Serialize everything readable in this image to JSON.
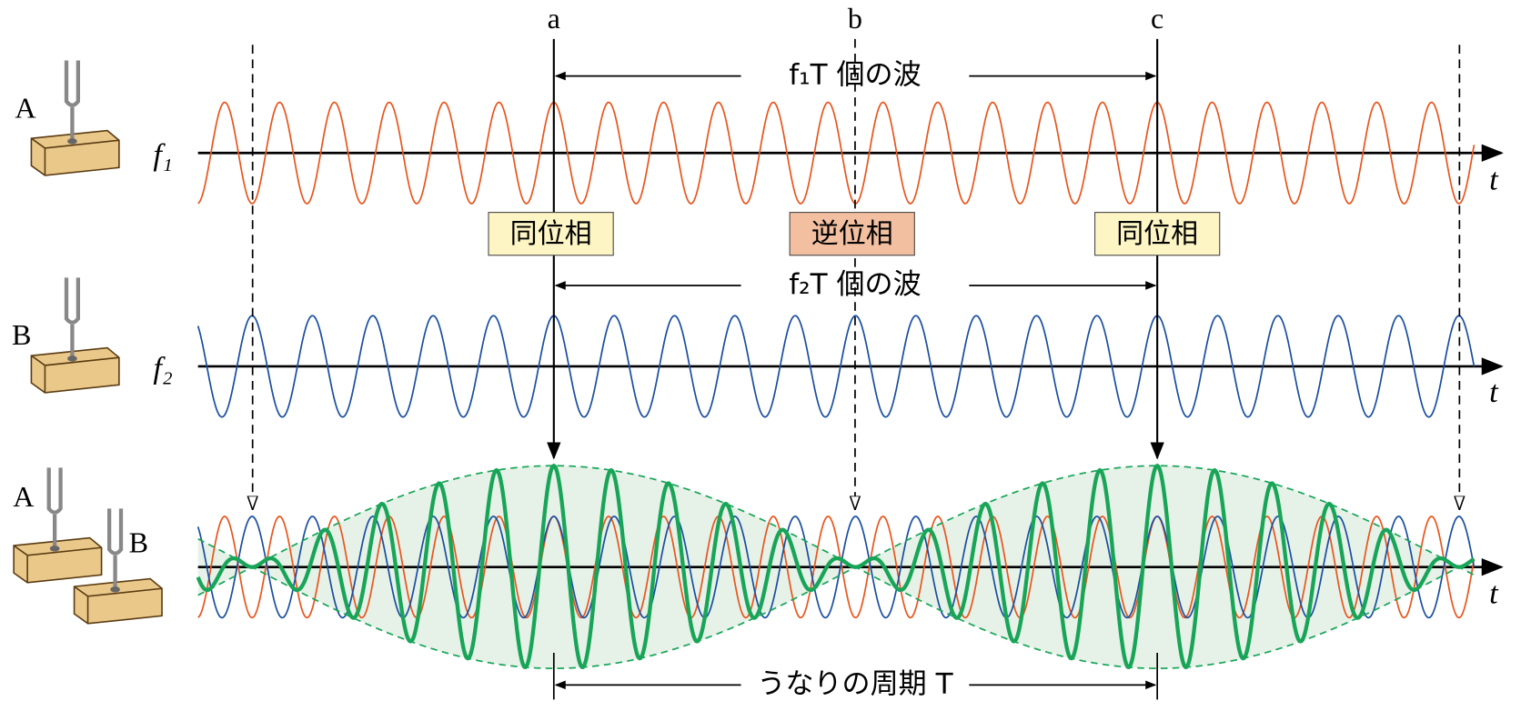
{
  "markers": {
    "a": "a",
    "b": "b",
    "c": "c"
  },
  "rows": [
    {
      "fork": "A",
      "freq": "f₁",
      "axis": "t"
    },
    {
      "fork": "B",
      "freq": "f₂",
      "axis": "t"
    },
    {
      "forks": [
        "A",
        "B"
      ],
      "axis": "t"
    }
  ],
  "spans": {
    "top": "f₁T 個の波",
    "middle": "f₂T 個の波",
    "bottom": "うなりの周期 T"
  },
  "phase_boxes": [
    "同位相",
    "逆位相",
    "同位相"
  ]
}
